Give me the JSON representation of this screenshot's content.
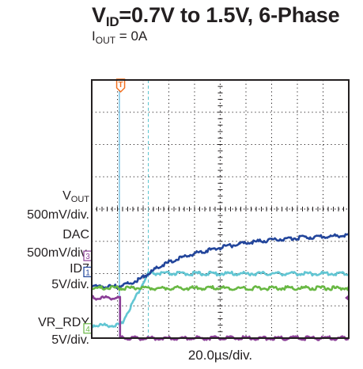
{
  "chart_data": {
    "type": "line",
    "title_parts": {
      "main": "V",
      "sub": "ID",
      "rest": "=0.7V to 1.5V, 6-Phase"
    },
    "subtitle_parts": {
      "main": "I",
      "sub": "OUT",
      "rest": " = 0A"
    },
    "xlabel": "20.0µs/div.",
    "grid": {
      "x_divisions": 10,
      "y_divisions": 8,
      "style": "dotted"
    },
    "x_range_us": [
      0,
      200
    ],
    "trigger_marker": {
      "label": "T",
      "x_us": 22.5
    },
    "cursors_us": [
      21.5,
      44
    ],
    "series": [
      {
        "name": "DAC",
        "channel": "2",
        "color": "#62c6d3",
        "ref_div": 2.05,
        "y_unit": "500mV/div.",
        "x_us": [
          0,
          22.5,
          44,
          200
        ],
        "y_div": [
          0.4,
          0.4,
          2.0,
          2.0
        ]
      },
      {
        "name": "VOUT",
        "channel": "1",
        "color": "#22459b",
        "ref_div": 2.05,
        "y_unit": "500mV/div.",
        "x_us": [
          0,
          20,
          28,
          36,
          44,
          52,
          60,
          70,
          80,
          90,
          100,
          115,
          130,
          150,
          170,
          200
        ],
        "y_div": [
          1.6,
          1.6,
          1.68,
          1.8,
          2.0,
          2.2,
          2.35,
          2.5,
          2.62,
          2.72,
          2.8,
          2.92,
          3.0,
          3.08,
          3.13,
          3.18
        ]
      },
      {
        "name": "ID7",
        "channel": "3",
        "color": "#8b3e97",
        "ref_div": 2.55,
        "y_unit": "5V/div.",
        "x_us": [
          0,
          22,
          22,
          200
        ],
        "y_div": [
          1.25,
          1.25,
          0.0,
          0.0
        ]
      },
      {
        "name": "VR_RDY",
        "channel": "4",
        "color": "#68b843",
        "ref_div": 0.3,
        "y_unit": "5V/div.",
        "x_us": [
          0,
          200
        ],
        "y_div": [
          1.55,
          1.55
        ]
      }
    ]
  },
  "labels": {
    "vout": {
      "main": "V",
      "sub": "OUT",
      "unit": "500mV/div."
    },
    "dac": {
      "main": "DAC",
      "unit": "500mV/div."
    },
    "id7": {
      "main": "ID7",
      "unit": "5V/div."
    },
    "vr_rdy": {
      "main": "VR_RDY",
      "unit": "5V/div."
    }
  },
  "colors": {
    "frame": "#231f20",
    "grid": "#231f20",
    "trigger": "#f37021",
    "cursor1": "#3aa7d8",
    "cursor2": "#5cc6d0"
  }
}
